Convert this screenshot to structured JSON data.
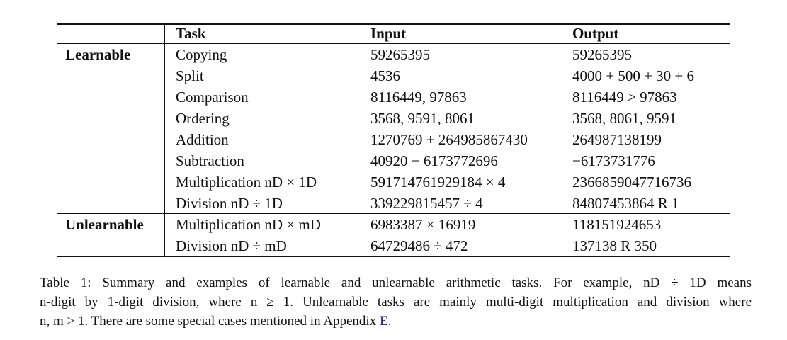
{
  "table": {
    "headers": [
      "Task",
      "Input",
      "Output"
    ],
    "groups": [
      {
        "label": "Learnable",
        "rows": [
          {
            "task": "Copying",
            "input": "59265395",
            "output": "59265395"
          },
          {
            "task": "Split",
            "input": "4536",
            "output": "4000 + 500 + 30 + 6"
          },
          {
            "task": "Comparison",
            "input": "8116449, 97863",
            "output": "8116449 > 97863"
          },
          {
            "task": "Ordering",
            "input": "3568, 9591, 8061",
            "output": "3568, 8061, 9591"
          },
          {
            "task": "Addition",
            "input": "1270769 + 264985867430",
            "output": "264987138199"
          },
          {
            "task": "Subtraction",
            "input": "40920 − 6173772696",
            "output": "−6173731776"
          },
          {
            "task": "Multiplication nD × 1D",
            "input": "591714761929184 × 4",
            "output": "2366859047716736"
          },
          {
            "task": "Division nD ÷ 1D",
            "input": "339229815457 ÷ 4",
            "output": "84807453864 R 1"
          }
        ]
      },
      {
        "label": "Unlearnable",
        "rows": [
          {
            "task": "Multiplication nD × mD",
            "input": "6983387 × 16919",
            "output": "118151924653"
          },
          {
            "task": "Division nD ÷ mD",
            "input": "64729486 ÷ 472",
            "output": "137138 R 350"
          }
        ]
      }
    ]
  },
  "caption": {
    "line1": "Table 1:  Summary and examples of learnable and unlearnable arithmetic tasks. For example, nD ÷ 1D means",
    "line2": "n-digit by 1-digit division, where n ≥ 1. Unlearnable tasks are mainly multi-digit multiplication and division where",
    "line3_before_ref": "n, m > 1. There are some special cases mentioned in Appendix ",
    "ref": "E",
    "line3_after_ref": "."
  },
  "colors": {
    "text": "#111111",
    "link": "#1a1aa6"
  }
}
